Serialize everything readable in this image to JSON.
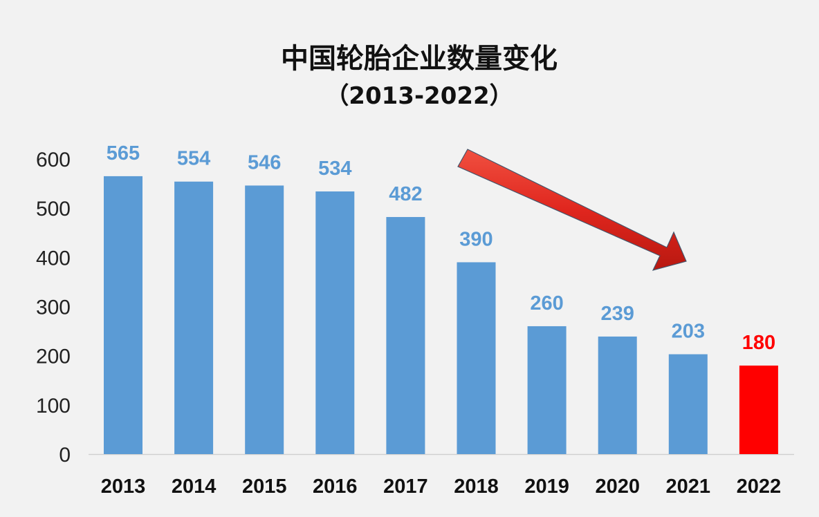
{
  "chart_data": {
    "type": "bar",
    "title": "中国轮胎企业数量变化",
    "subtitle": "（2013-2022）",
    "categories": [
      "2013",
      "2014",
      "2015",
      "2016",
      "2017",
      "2018",
      "2019",
      "2020",
      "2021",
      "2022"
    ],
    "values": [
      565,
      554,
      546,
      534,
      482,
      390,
      260,
      239,
      203,
      180
    ],
    "ylim": [
      0,
      600
    ],
    "yticks": [
      0,
      100,
      200,
      300,
      400,
      500,
      600
    ],
    "grid": false,
    "legend": "none",
    "bar_color": "#5b9bd5",
    "highlight_index": 9,
    "highlight_color": "#ff0000",
    "label_color": "#5b9bd5",
    "highlight_label_color": "#ff0000",
    "trend_arrow": {
      "direction": "down-right",
      "color": "#e02a22"
    }
  }
}
